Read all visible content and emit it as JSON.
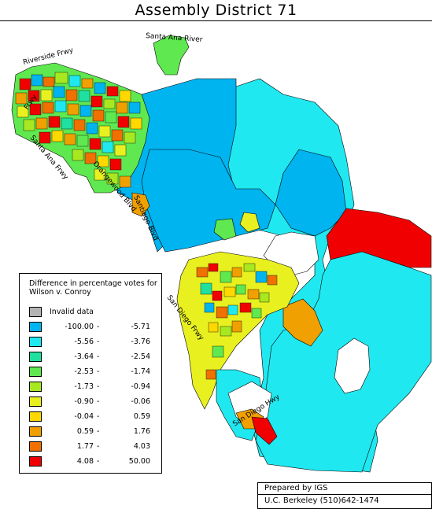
{
  "title": "Assembly District 71",
  "roads": {
    "santa_ana_river": "Santa Ana River",
    "riverside_frwy": "Riverside Frwy",
    "santa_ana_frwy": "Santa Ana Frwy",
    "garden_grove_frwy": "Frwy",
    "orangewood_blvd": "Orangewood Blvd",
    "santiago_blvd": "Santiago Blvd",
    "san_diego_frwy": "San Diego Frwy",
    "san_diego_hwy": "San Diego Hwy"
  },
  "legend": {
    "title": "Difference in percentage votes for Wilson v. Conroy",
    "invalid_label": "Invalid data",
    "invalid_color": "#b4b4b4",
    "bins": [
      {
        "low": "-100.00",
        "high": "-5.71",
        "color": "#00b4f0"
      },
      {
        "low": "-5.56",
        "high": "-3.76",
        "color": "#20e8f0"
      },
      {
        "low": "-3.64",
        "high": "-2.54",
        "color": "#20e0a0"
      },
      {
        "low": "-2.53",
        "high": "-1.74",
        "color": "#60e850"
      },
      {
        "low": "-1.73",
        "high": "-0.94",
        "color": "#a8e820"
      },
      {
        "low": "-0.90",
        "high": "-0.06",
        "color": "#e8f020"
      },
      {
        "low": "-0.04",
        "high": "0.59",
        "color": "#ffd800"
      },
      {
        "low": "0.59",
        "high": "1.76",
        "color": "#f0a000"
      },
      {
        "low": "1.77",
        "high": "4.03",
        "color": "#f07000"
      },
      {
        "low": "4.08",
        "high": "50.00",
        "color": "#f00000"
      }
    ]
  },
  "credit": {
    "line1": "Prepared by IGS",
    "line2": "U.C. Berkeley  (510)642-1474"
  }
}
